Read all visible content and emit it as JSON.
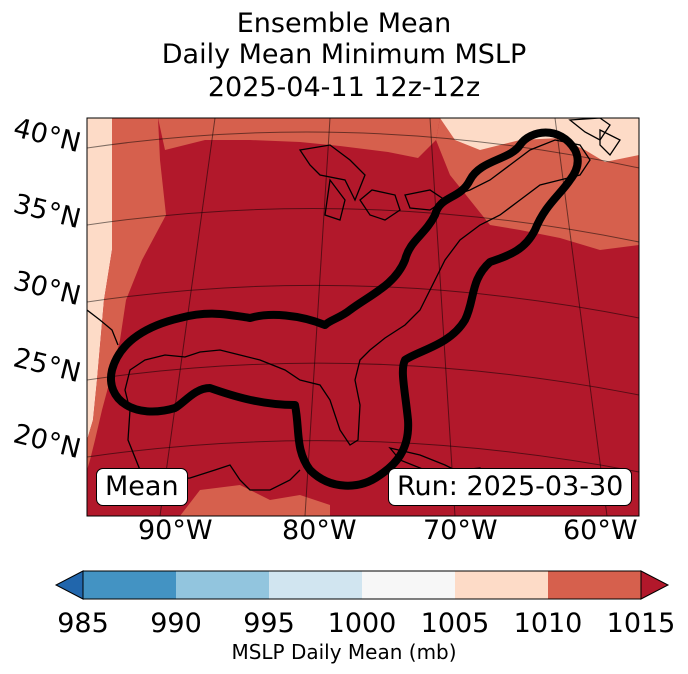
{
  "title": {
    "line1": "Ensemble Mean",
    "line2": "Daily Mean Minimum MSLP",
    "line3": "2025-04-11 12z-12z"
  },
  "map": {
    "lat_labels": [
      "40°N",
      "35°N",
      "30°N",
      "25°N",
      "20°N"
    ],
    "lon_labels": [
      "90°W",
      "80°W",
      "70°W",
      "60°W"
    ],
    "mean_box": "Mean",
    "run_box": "Run: 2025-03-30"
  },
  "colorbar": {
    "ticks": [
      "985",
      "990",
      "995",
      "1000",
      "1005",
      "1010",
      "1015"
    ],
    "label": "MSLP Daily Mean (mb)",
    "colors": {
      "under": "#2166ac",
      "985-990": "#4393c3",
      "990-995": "#92c5de",
      "995-1000": "#d1e5f0",
      "1000-1005": "#f7f7f7",
      "1005-1010": "#fddbc7",
      "1010-1015": "#d6604d",
      "over": "#b2182b"
    }
  }
}
